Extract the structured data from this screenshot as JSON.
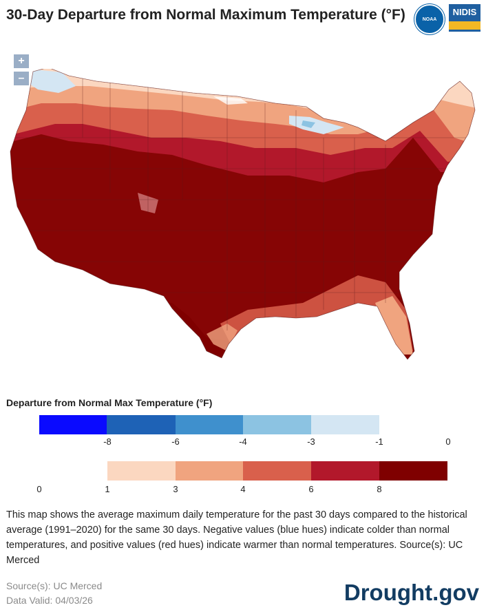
{
  "title": "30-Day Departure from Normal Maximum Temperature (°F)",
  "logos": {
    "noaa": "NOAA",
    "nidis": "NIDIS"
  },
  "map_controls": {
    "zoom_in": "+",
    "zoom_out": "–"
  },
  "legend": {
    "title": "Departure from Normal Max Temperature (°F)",
    "cold_colors": [
      "#0a0aff",
      "#1e62b6",
      "#3f90cd",
      "#8cc3e2",
      "#d4e6f3"
    ],
    "cold_ticks": [
      "-8",
      "-6",
      "-4",
      "-3",
      "-1",
      "0"
    ],
    "warm_colors": [
      "#fbd7c0",
      "#f0a47f",
      "#d9604c",
      "#b2182b",
      "#7f0000"
    ],
    "warm_ticks": [
      "0",
      "1",
      "3",
      "4",
      "6",
      "8"
    ]
  },
  "description": "This map shows the average maximum daily temperature for the past 30 days compared to the historical average (1991–2020) for the same 30 days. Negative values (blue hues) indicate colder than normal temperatures, and positive values (red hues) indicate warmer than normal temperatures. Source(s): UC Merced",
  "source": "Source(s): UC Merced",
  "data_valid": "Data Valid: 04/03/26",
  "brand": "Drought.gov"
}
